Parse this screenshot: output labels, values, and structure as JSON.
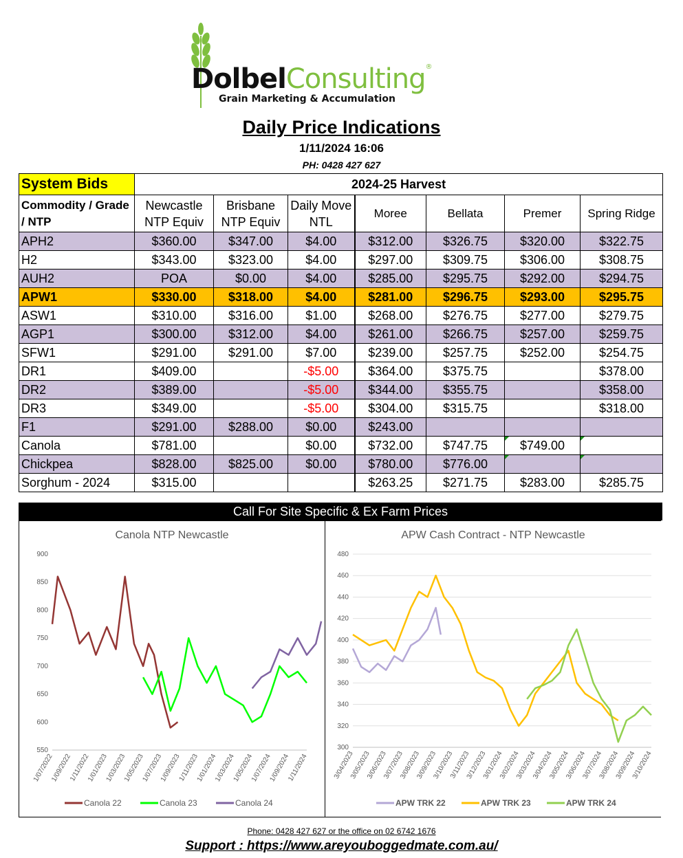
{
  "logo": {
    "brand_part1": "Dolbel",
    "brand_part2": "Consulting",
    "reg_mark": "®",
    "tagline": "Grain Marketing & Accumulation"
  },
  "header": {
    "title": "Daily Price Indications",
    "datetime": "1/11/2024 16:06",
    "phone": "PH: 0428 427 627"
  },
  "table": {
    "system_bids": "System Bids",
    "harvest": "2024-25 Harvest",
    "columns": [
      "Commodity / Grade / NTP",
      "Newcastle NTP Equiv",
      "Brisbane NTP Equiv",
      "Daily Move NTL",
      "Moree",
      "Bellata",
      "Premer",
      "Spring Ridge"
    ],
    "rows": [
      {
        "grade": "APH2",
        "cells": [
          "$360.00",
          "$347.00",
          "$4.00",
          "$312.00",
          "$326.75",
          "$320.00",
          "$322.75"
        ],
        "style": "lav"
      },
      {
        "grade": "H2",
        "cells": [
          "$343.00",
          "$323.00",
          "$4.00",
          "$297.00",
          "$309.75",
          "$306.00",
          "$308.75"
        ],
        "style": ""
      },
      {
        "grade": "AUH2",
        "cells": [
          "POA",
          "$0.00",
          "$4.00",
          "$285.00",
          "$295.75",
          "$292.00",
          "$294.75"
        ],
        "style": "lav"
      },
      {
        "grade": "APW1",
        "cells": [
          "$330.00",
          "$318.00",
          "$4.00",
          "$281.00",
          "$296.75",
          "$293.00",
          "$295.75"
        ],
        "style": "hl"
      },
      {
        "grade": "ASW1",
        "cells": [
          "$310.00",
          "$316.00",
          "$1.00",
          "$268.00",
          "$276.75",
          "$277.00",
          "$279.75"
        ],
        "style": ""
      },
      {
        "grade": "AGP1",
        "cells": [
          "$300.00",
          "$312.00",
          "$4.00",
          "$261.00",
          "$266.75",
          "$257.00",
          "$259.75"
        ],
        "style": "lav"
      },
      {
        "grade": "SFW1",
        "cells": [
          "$291.00",
          "$291.00",
          "$7.00",
          "$239.00",
          "$257.75",
          "$252.00",
          "$254.75"
        ],
        "style": ""
      },
      {
        "grade": "DR1",
        "cells": [
          "$409.00",
          "",
          "-$5.00",
          "$364.00",
          "$375.75",
          "",
          "$378.00"
        ],
        "style": ""
      },
      {
        "grade": "DR2",
        "cells": [
          "$389.00",
          "",
          "-$5.00",
          "$344.00",
          "$355.75",
          "",
          "$358.00"
        ],
        "style": "lav"
      },
      {
        "grade": "DR3",
        "cells": [
          "$349.00",
          "",
          "-$5.00",
          "$304.00",
          "$315.75",
          "",
          "$318.00"
        ],
        "style": ""
      },
      {
        "grade": "F1",
        "cells": [
          "$291.00",
          "$288.00",
          "$0.00",
          "$243.00",
          "",
          "",
          ""
        ],
        "style": "lav"
      },
      {
        "grade": "Canola",
        "cells": [
          "$781.00",
          "",
          "$0.00",
          "$732.00",
          "$747.75",
          "$749.00",
          ""
        ],
        "style": ""
      },
      {
        "grade": "Chickpea",
        "cells": [
          "$828.00",
          "$825.00",
          "$0.00",
          "$780.00",
          "$776.00",
          "",
          ""
        ],
        "style": "lav"
      },
      {
        "grade": "Sorghum - 2024",
        "cells": [
          "$315.00",
          "",
          "",
          "$263.25",
          "$271.75",
          "$283.00",
          "$285.75"
        ],
        "style": ""
      }
    ]
  },
  "call_bar": "Call For Site Specific & Ex Farm Prices",
  "chart_data": [
    {
      "type": "line",
      "title": "Canola NTP Newcastle",
      "ylim": [
        550,
        900
      ],
      "yticks": [
        550,
        600,
        650,
        700,
        750,
        800,
        850,
        900
      ],
      "x_tick_labels": [
        "1/07/2022",
        "1/09/2022",
        "1/11/2022",
        "1/01/2023",
        "1/03/2023",
        "1/05/2023",
        "1/07/2023",
        "1/09/2023",
        "1/11/2023",
        "1/01/2024",
        "1/03/2024",
        "1/05/2024",
        "1/07/2024",
        "1/09/2024",
        "1/11/2024"
      ],
      "legend_position": "bottom",
      "series": [
        {
          "name": "Canola 22",
          "color": "#943634",
          "x": [
            0,
            0.3,
            1,
            1.5,
            2,
            2.4,
            3,
            3.5,
            4,
            4.5,
            5,
            5.3,
            5.6,
            6,
            6.5,
            6.9
          ],
          "values": [
            775,
            860,
            800,
            740,
            760,
            720,
            770,
            730,
            860,
            740,
            700,
            740,
            720,
            650,
            590,
            600
          ]
        },
        {
          "name": "Canola 23",
          "color": "#00ff00",
          "x": [
            5,
            5.5,
            6,
            6.5,
            7,
            7.5,
            8,
            8.5,
            9,
            9.5,
            10,
            10.5,
            11,
            11.5,
            12,
            12.5,
            13,
            13.5,
            14
          ],
          "values": [
            680,
            650,
            690,
            620,
            660,
            750,
            700,
            670,
            700,
            650,
            640,
            630,
            600,
            610,
            650,
            700,
            680,
            690,
            670
          ]
        },
        {
          "name": "Canola 24",
          "color": "#8064a2",
          "x": [
            11,
            11.5,
            12,
            12.5,
            13,
            13.5,
            14,
            14.5,
            14.8
          ],
          "values": [
            660,
            680,
            690,
            730,
            720,
            750,
            720,
            740,
            780
          ]
        }
      ]
    },
    {
      "type": "line",
      "title": "APW Cash Contract - NTP Newcastle",
      "ylim": [
        300,
        480
      ],
      "yticks": [
        300,
        320,
        340,
        360,
        380,
        400,
        420,
        440,
        460,
        480
      ],
      "x_tick_labels": [
        "3/04/2023",
        "3/05/2023",
        "3/06/2023",
        "3/07/2023",
        "3/08/2023",
        "3/09/2023",
        "3/10/2023",
        "3/11/2023",
        "3/12/2023",
        "3/01/2024",
        "3/02/2024",
        "3/03/2024",
        "3/04/2024",
        "3/05/2024",
        "3/06/2024",
        "3/07/2024",
        "3/08/2024",
        "3/09/2024",
        "3/10/2024"
      ],
      "legend_position": "bottom",
      "series": [
        {
          "name": "APW TRK 22",
          "color": "#b4a7d6",
          "x": [
            0,
            0.5,
            1,
            1.5,
            2,
            2.5,
            3,
            3.5,
            4,
            4.5,
            5,
            5.3
          ],
          "values": [
            392,
            375,
            370,
            378,
            372,
            385,
            380,
            395,
            400,
            410,
            430,
            405
          ]
        },
        {
          "name": "APW TRK 23",
          "color": "#ffc000",
          "x": [
            0,
            1,
            2,
            2.5,
            3,
            3.5,
            4,
            4.5,
            5,
            5.5,
            6,
            6.5,
            7,
            7.5,
            8,
            8.5,
            9,
            9.5,
            10,
            10.5,
            11,
            11.5,
            12,
            12.5,
            13,
            13.5,
            14,
            14.5,
            15,
            15.5,
            16
          ],
          "values": [
            405,
            395,
            400,
            390,
            410,
            430,
            445,
            440,
            460,
            440,
            430,
            415,
            390,
            370,
            365,
            362,
            355,
            335,
            320,
            330,
            350,
            360,
            370,
            380,
            390,
            360,
            350,
            345,
            340,
            330,
            325
          ]
        },
        {
          "name": "APW TRK 24",
          "color": "#92d050",
          "x": [
            10.5,
            11,
            11.5,
            12,
            12.5,
            13,
            13.5,
            14,
            14.5,
            15,
            15.5,
            16,
            16.5,
            17,
            17.5,
            18
          ],
          "values": [
            345,
            355,
            358,
            362,
            370,
            395,
            410,
            385,
            360,
            345,
            335,
            305,
            325,
            330,
            338,
            330
          ]
        }
      ]
    }
  ],
  "footer": {
    "phone_line": "Phone: 0428 427 627 or the office on 02 6742 1676",
    "support": "Support : https://www.areyouboggedmate.com.au/"
  },
  "colors": {
    "lavender": "#ccc0da",
    "highlight": "#ffc000",
    "system_bids_bg": "#ffff00",
    "negative": "#ff0000"
  }
}
